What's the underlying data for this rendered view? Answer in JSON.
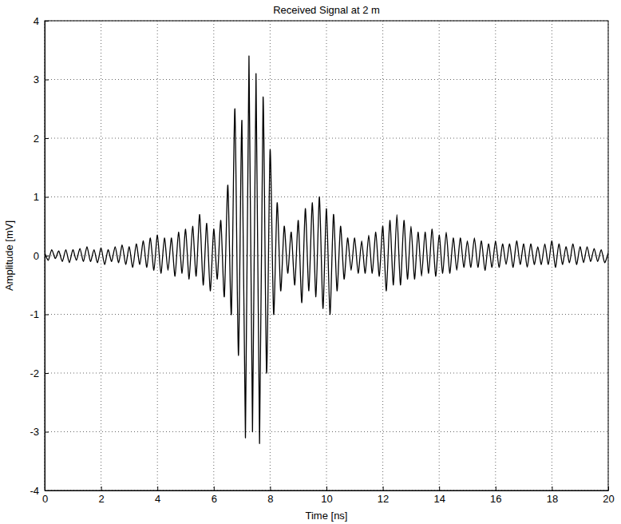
{
  "chart_data": {
    "type": "line",
    "title": "Received Signal at 2 m",
    "x_label": "Time [ns]",
    "y_label": "Amplitude [mV]",
    "color": "#000000",
    "grid": true,
    "xlim": [
      0,
      20
    ],
    "ylim": [
      -4,
      4
    ],
    "xticks": [
      0,
      2,
      4,
      6,
      8,
      10,
      12,
      14,
      16,
      18,
      20
    ],
    "yticks": [
      -4,
      -3,
      -2,
      -1,
      0,
      1,
      2,
      3,
      4
    ],
    "x": [
      0,
      0.125,
      0.25,
      0.375,
      0.5,
      0.625,
      0.75,
      0.875,
      1,
      1.125,
      1.25,
      1.375,
      1.5,
      1.625,
      1.75,
      1.875,
      2,
      2.125,
      2.25,
      2.375,
      2.5,
      2.625,
      2.75,
      2.875,
      3,
      3.125,
      3.25,
      3.375,
      3.5,
      3.625,
      3.75,
      3.875,
      4,
      4.125,
      4.25,
      4.375,
      4.5,
      4.625,
      4.75,
      4.875,
      5,
      5.125,
      5.25,
      5.375,
      5.5,
      5.625,
      5.75,
      5.875,
      6,
      6.125,
      6.25,
      6.375,
      6.5,
      6.625,
      6.75,
      6.875,
      7,
      7.125,
      7.25,
      7.375,
      7.5,
      7.625,
      7.75,
      7.875,
      8,
      8.125,
      8.25,
      8.375,
      8.5,
      8.625,
      8.75,
      8.875,
      9,
      9.125,
      9.25,
      9.375,
      9.5,
      9.625,
      9.75,
      9.875,
      10,
      10.125,
      10.25,
      10.375,
      10.5,
      10.625,
      10.75,
      10.875,
      11,
      11.125,
      11.25,
      11.375,
      11.5,
      11.625,
      11.75,
      11.875,
      12,
      12.125,
      12.25,
      12.375,
      12.5,
      12.625,
      12.75,
      12.875,
      13,
      13.125,
      13.25,
      13.375,
      13.5,
      13.625,
      13.75,
      13.875,
      14,
      14.125,
      14.25,
      14.375,
      14.5,
      14.625,
      14.75,
      14.875,
      15,
      15.125,
      15.25,
      15.375,
      15.5,
      15.625,
      15.75,
      15.875,
      16,
      16.125,
      16.25,
      16.375,
      16.5,
      16.625,
      16.75,
      16.875,
      17,
      17.125,
      17.25,
      17.375,
      17.5,
      17.625,
      17.75,
      17.875,
      18,
      18.125,
      18.25,
      18.375,
      18.5,
      18.625,
      18.75,
      18.875,
      19,
      19.125,
      19.25,
      19.375,
      19.5,
      19.625,
      19.75,
      19.875,
      20
    ],
    "values": [
      0.05,
      -0.08,
      0.1,
      -0.05,
      0.08,
      -0.1,
      0.1,
      -0.12,
      0.1,
      -0.08,
      0.12,
      -0.1,
      0.15,
      -0.1,
      0.1,
      -0.12,
      0.13,
      -0.15,
      0.1,
      -0.1,
      0.15,
      -0.12,
      0.18,
      -0.15,
      0.15,
      -0.2,
      0.2,
      -0.15,
      0.25,
      -0.2,
      0.3,
      -0.25,
      0.35,
      -0.3,
      0.3,
      -0.25,
      0.3,
      -0.35,
      0.4,
      -0.3,
      0.45,
      -0.4,
      0.5,
      -0.35,
      0.7,
      -0.5,
      0.55,
      -0.6,
      0.45,
      -0.4,
      0.6,
      -0.7,
      1.2,
      -1.0,
      2.5,
      -1.7,
      2.3,
      -3.1,
      3.4,
      -3.0,
      3.1,
      -3.2,
      2.7,
      -2.0,
      1.8,
      -1.0,
      0.9,
      -0.6,
      0.5,
      -0.3,
      0.4,
      -0.5,
      0.6,
      -0.8,
      0.8,
      -0.6,
      0.9,
      -0.7,
      1.0,
      -0.9,
      0.8,
      -1.0,
      0.7,
      -0.6,
      0.5,
      -0.4,
      0.3,
      -0.25,
      0.3,
      -0.3,
      0.25,
      -0.3,
      0.35,
      -0.3,
      0.4,
      -0.35,
      0.5,
      -0.6,
      0.6,
      -0.5,
      0.7,
      -0.5,
      0.6,
      -0.4,
      0.5,
      -0.4,
      0.4,
      -0.35,
      0.4,
      -0.3,
      0.45,
      -0.35,
      0.35,
      -0.3,
      0.4,
      -0.3,
      0.3,
      -0.25,
      0.3,
      -0.2,
      0.25,
      -0.2,
      0.3,
      -0.2,
      0.25,
      -0.25,
      0.2,
      -0.2,
      0.25,
      -0.2,
      0.2,
      -0.15,
      0.2,
      -0.2,
      0.25,
      -0.15,
      0.2,
      -0.2,
      0.2,
      -0.15,
      0.15,
      -0.15,
      0.2,
      -0.15,
      0.25,
      -0.2,
      0.2,
      -0.15,
      0.15,
      -0.12,
      0.2,
      -0.15,
      0.15,
      -0.12,
      0.15,
      -0.1,
      0.12,
      -0.1,
      0.1,
      -0.12,
      0.05
    ]
  }
}
